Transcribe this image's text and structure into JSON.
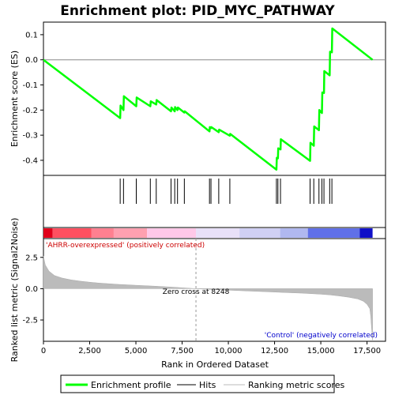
{
  "chart_data": {
    "type": "line",
    "title": "Enrichment plot: PID_MYC_PATHWAY",
    "xlabel": "Rank in Ordered Dataset",
    "ylabel_top": "Enrichment score (ES)",
    "ylabel_bottom": "Ranked list metric (Signal2Noise)",
    "xlim": [
      0,
      18500
    ],
    "x_ticks": [
      0,
      2500,
      5000,
      7500,
      10000,
      12500,
      15000,
      17500
    ],
    "x_tick_labels": [
      "0",
      "2,500",
      "5,000",
      "7,500",
      "10,000",
      "12,500",
      "15,000",
      "17,500"
    ],
    "es_ylim": [
      -0.46,
      0.15
    ],
    "es_ticks": [
      0.1,
      0.0,
      -0.1,
      -0.2,
      -0.3,
      -0.4
    ],
    "es_tick_labels": [
      "0.1",
      "0.0",
      "-0.1",
      "-0.2",
      "-0.3",
      "-0.4"
    ],
    "metric_ylim": [
      -4.2,
      4.0
    ],
    "metric_ticks": [
      2.5,
      0.0,
      -2.5
    ],
    "metric_tick_labels": [
      "2.5",
      "0.0",
      "-2.5"
    ],
    "series": [
      {
        "name": "Enrichment profile",
        "color": "#00ff00",
        "x": [
          0,
          4150,
          4170,
          4330,
          4350,
          5020,
          5040,
          5780,
          5800,
          6100,
          6120,
          6900,
          6920,
          7100,
          7120,
          7250,
          7270,
          7620,
          7640,
          8980,
          9000,
          9060,
          9080,
          9480,
          9500,
          10080,
          10100,
          12600,
          12620,
          12680,
          12700,
          12820,
          12840,
          14420,
          14440,
          14620,
          14640,
          14900,
          14920,
          15060,
          15080,
          15170,
          15190,
          15480,
          15500,
          15600,
          15620,
          17800
        ],
        "y": [
          0.0,
          -0.232,
          -0.182,
          -0.2,
          -0.145,
          -0.185,
          -0.15,
          -0.185,
          -0.165,
          -0.178,
          -0.16,
          -0.205,
          -0.19,
          -0.205,
          -0.188,
          -0.2,
          -0.19,
          -0.21,
          -0.205,
          -0.285,
          -0.268,
          -0.272,
          -0.268,
          -0.288,
          -0.278,
          -0.302,
          -0.295,
          -0.437,
          -0.39,
          -0.392,
          -0.352,
          -0.357,
          -0.316,
          -0.402,
          -0.33,
          -0.342,
          -0.265,
          -0.28,
          -0.2,
          -0.212,
          -0.13,
          -0.132,
          -0.045,
          -0.062,
          0.032,
          0.03,
          0.125,
          0.0
        ]
      }
    ],
    "hits": [
      4150,
      4330,
      5020,
      5780,
      6100,
      6900,
      7100,
      7250,
      7620,
      8980,
      9060,
      9480,
      10080,
      12600,
      12680,
      12820,
      14420,
      14620,
      14900,
      15060,
      15170,
      15480,
      15600
    ],
    "metric_profile": {
      "x": [
        0,
        100,
        300,
        600,
        1000,
        1500,
        2000,
        2500,
        3000,
        4000,
        5000,
        6000,
        7000,
        8248,
        9000,
        10000,
        11000,
        12000,
        13000,
        14000,
        15000,
        15500,
        16000,
        16500,
        17000,
        17300,
        17500,
        17650,
        17700,
        17750,
        17800
      ],
      "y": [
        2.6,
        1.9,
        1.4,
        1.05,
        0.85,
        0.7,
        0.6,
        0.52,
        0.45,
        0.35,
        0.27,
        0.2,
        0.12,
        0.0,
        -0.06,
        -0.12,
        -0.18,
        -0.24,
        -0.3,
        -0.36,
        -0.44,
        -0.5,
        -0.58,
        -0.68,
        -0.82,
        -1.0,
        -1.25,
        -1.6,
        -2.2,
        -3.2,
        -4.1
      ]
    },
    "zero_cross": 8248,
    "zero_cross_label": "Zero cross at 8248",
    "pos_label": "'AHRR-overexpressed' (positively correlated)",
    "neg_label": "'Control' (negatively correlated)",
    "legend": [
      {
        "label": "Enrichment profile",
        "color": "#00ff00"
      },
      {
        "label": "Hits",
        "color": "#000000"
      },
      {
        "label": "Ranking metric scores",
        "color": "#bbbbbb"
      }
    ],
    "heatmap_bands": [
      {
        "x0": 0,
        "x1": 500,
        "color": "#e0001a"
      },
      {
        "x0": 500,
        "x1": 2600,
        "color": "#ff5060"
      },
      {
        "x0": 2600,
        "x1": 3800,
        "color": "#ff8090"
      },
      {
        "x0": 3800,
        "x1": 5600,
        "color": "#ffa0b0"
      },
      {
        "x0": 5600,
        "x1": 8248,
        "color": "#ffc8e8"
      },
      {
        "x0": 8248,
        "x1": 10600,
        "color": "#e8e0f8"
      },
      {
        "x0": 10600,
        "x1": 12800,
        "color": "#d0d0f4"
      },
      {
        "x0": 12800,
        "x1": 14300,
        "color": "#b0b8f0"
      },
      {
        "x0": 14300,
        "x1": 17100,
        "color": "#6070e8"
      },
      {
        "x0": 17100,
        "x1": 17800,
        "color": "#1010c8"
      }
    ]
  }
}
